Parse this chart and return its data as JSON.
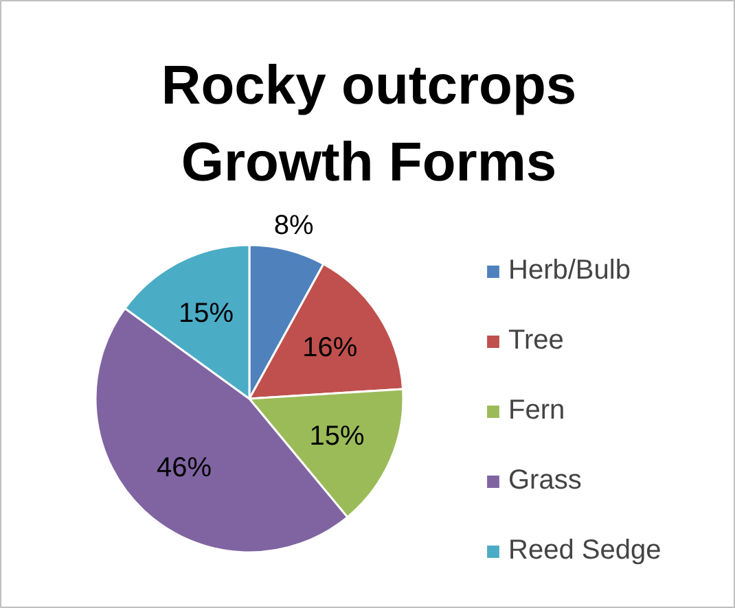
{
  "chart_data": {
    "type": "pie",
    "title": "Rocky outcrops Growth Forms",
    "categories": [
      "Herb/Bulb",
      "Tree",
      "Fern",
      "Grass",
      "Reed Sedge"
    ],
    "values": [
      8,
      16,
      15,
      46,
      15
    ],
    "colors": [
      "#4f81bd",
      "#c0504d",
      "#9bbb59",
      "#8064a2",
      "#4bacc6"
    ],
    "value_labels": [
      "8%",
      "16%",
      "15%",
      "46%",
      "15%"
    ],
    "legend": "right"
  }
}
